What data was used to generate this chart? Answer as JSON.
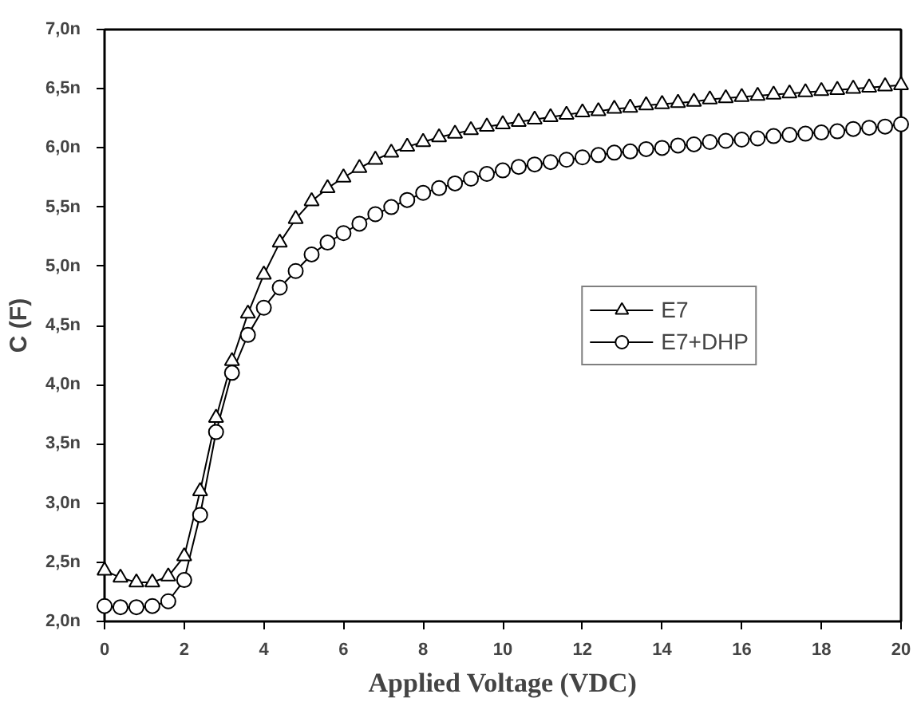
{
  "chart_data": {
    "type": "line",
    "xlabel": "Applied Voltage (VDC)",
    "ylabel": "C (F)",
    "x": [
      0,
      0.4,
      0.8,
      1.2,
      1.6,
      2.0,
      2.4,
      2.8,
      3.2,
      3.6,
      4.0,
      4.4,
      4.8,
      5.2,
      5.6,
      6.0,
      6.4,
      6.8,
      7.2,
      7.6,
      8.0,
      8.4,
      8.8,
      9.2,
      9.6,
      10.0,
      10.4,
      10.8,
      11.2,
      11.6,
      12.0,
      12.4,
      12.8,
      13.2,
      13.6,
      14.0,
      14.4,
      14.8,
      15.2,
      15.6,
      16.0,
      16.4,
      16.8,
      17.2,
      17.6,
      18.0,
      18.4,
      18.8,
      19.2,
      19.6,
      20.0
    ],
    "series": [
      {
        "name": "E7",
        "color": "#000000",
        "marker": "triangle",
        "values": [
          2.43,
          2.37,
          2.33,
          2.33,
          2.38,
          2.55,
          3.1,
          3.72,
          4.2,
          4.6,
          4.93,
          5.2,
          5.4,
          5.55,
          5.66,
          5.75,
          5.83,
          5.9,
          5.96,
          6.01,
          6.05,
          6.09,
          6.12,
          6.15,
          6.18,
          6.2,
          6.22,
          6.24,
          6.26,
          6.28,
          6.3,
          6.31,
          6.33,
          6.34,
          6.36,
          6.37,
          6.38,
          6.39,
          6.41,
          6.42,
          6.43,
          6.44,
          6.45,
          6.46,
          6.47,
          6.48,
          6.49,
          6.5,
          6.51,
          6.52,
          6.53
        ]
      },
      {
        "name": "E7+DHP",
        "color": "#000000",
        "marker": "circle",
        "values": [
          2.13,
          2.12,
          2.12,
          2.13,
          2.17,
          2.35,
          2.9,
          3.6,
          4.1,
          4.42,
          4.65,
          4.82,
          4.96,
          5.1,
          5.2,
          5.28,
          5.36,
          5.44,
          5.5,
          5.56,
          5.62,
          5.66,
          5.7,
          5.74,
          5.78,
          5.81,
          5.84,
          5.86,
          5.88,
          5.9,
          5.92,
          5.94,
          5.96,
          5.97,
          5.99,
          6.0,
          6.02,
          6.03,
          6.05,
          6.06,
          6.07,
          6.08,
          6.1,
          6.11,
          6.12,
          6.13,
          6.14,
          6.16,
          6.17,
          6.18,
          6.2
        ]
      }
    ],
    "xlim": [
      0,
      20
    ],
    "xticks": [
      0,
      2,
      4,
      6,
      8,
      10,
      12,
      14,
      16,
      18,
      20
    ],
    "ylim": [
      2.0,
      7.0
    ],
    "yticks": [
      {
        "value": 2.0,
        "label": "2,0n"
      },
      {
        "value": 2.5,
        "label": "2,5n"
      },
      {
        "value": 3.0,
        "label": "3,0n"
      },
      {
        "value": 3.5,
        "label": "3,5n"
      },
      {
        "value": 4.0,
        "label": "4,0n"
      },
      {
        "value": 4.5,
        "label": "4,5n"
      },
      {
        "value": 5.0,
        "label": "5,0n"
      },
      {
        "value": 5.5,
        "label": "5,5n"
      },
      {
        "value": 6.0,
        "label": "6,0n"
      },
      {
        "value": 6.5,
        "label": "6,5n"
      },
      {
        "value": 7.0,
        "label": "7,0n"
      }
    ],
    "grid": false,
    "legend": "right",
    "line_style": "solid"
  }
}
